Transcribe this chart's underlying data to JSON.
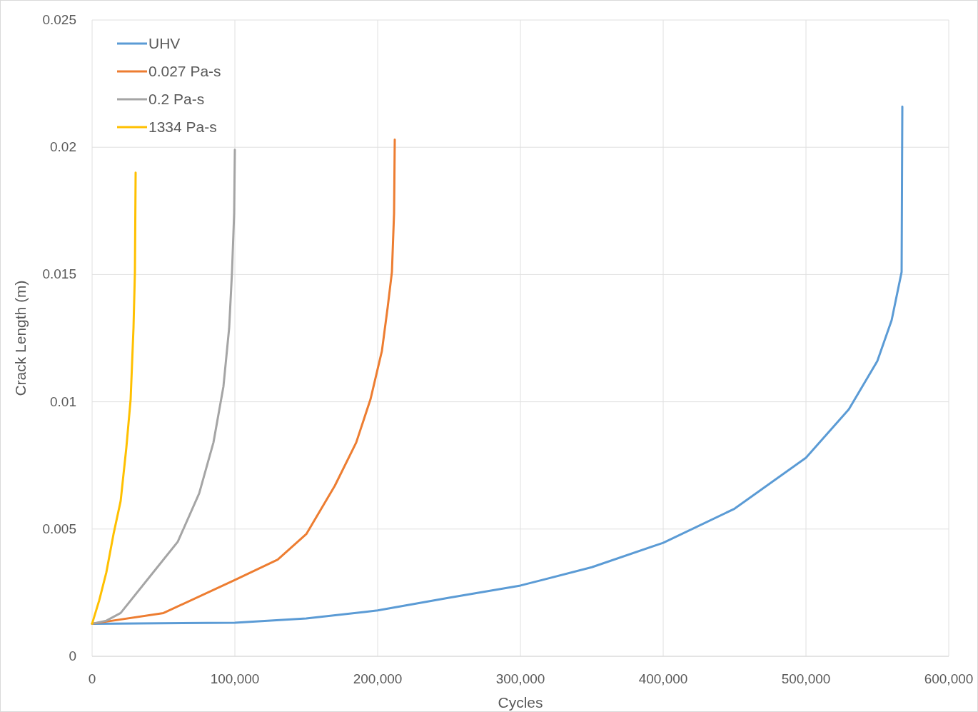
{
  "chart_data": {
    "type": "line",
    "xlabel": "Cycles",
    "ylabel": "Crack Length (m)",
    "xlim": [
      0,
      600000
    ],
    "ylim": [
      0,
      0.025
    ],
    "xticks": [
      0,
      {
        "value": 100000,
        "label": "100,000"
      },
      {
        "value": 200000,
        "label": "200,000"
      },
      {
        "value": 300000,
        "label": "300,000"
      },
      {
        "value": 400000,
        "label": "400,000"
      },
      {
        "value": 500000,
        "label": "500,000"
      },
      {
        "value": 600000,
        "label": "600,000"
      }
    ],
    "yticks": [
      0,
      0.005,
      0.01,
      0.015,
      0.02,
      0.025
    ],
    "grid": true,
    "legend": "top left",
    "marker": "none",
    "line_style": "solid",
    "series": [
      {
        "name": "UHV",
        "color": "#5b9bd5",
        "x": [
          0,
          100000,
          150000,
          200000,
          250000,
          300000,
          350000,
          400000,
          450000,
          500000,
          530000,
          550000,
          560000,
          567000,
          567500
        ],
        "values": [
          0.00128,
          0.00132,
          0.00149,
          0.0018,
          0.0023,
          0.00278,
          0.0035,
          0.00446,
          0.0058,
          0.0078,
          0.0097,
          0.0116,
          0.0132,
          0.0151,
          0.0216
        ]
      },
      {
        "name": "0.027 Pa-s",
        "color": "#ed7d31",
        "x": [
          0,
          50000,
          100000,
          130000,
          150000,
          170000,
          185000,
          195000,
          203000,
          207000,
          210000,
          211500,
          212000
        ],
        "values": [
          0.00128,
          0.0017,
          0.003,
          0.0038,
          0.0048,
          0.0067,
          0.0084,
          0.0101,
          0.012,
          0.0137,
          0.0151,
          0.0174,
          0.0203
        ]
      },
      {
        "name": "0.2 Pa-s",
        "color": "#a5a5a5",
        "x": [
          0,
          10000,
          20000,
          40000,
          60000,
          75000,
          85000,
          92000,
          96000,
          98000,
          99500,
          100000
        ],
        "values": [
          0.00128,
          0.0014,
          0.0017,
          0.0031,
          0.0045,
          0.0064,
          0.0084,
          0.0106,
          0.0129,
          0.0151,
          0.0174,
          0.0199
        ]
      },
      {
        "name": "1334 Pa-s",
        "color": "#ffc000",
        "x": [
          0,
          5000,
          10000,
          15000,
          20000,
          24000,
          27000,
          29000,
          30000,
          30500
        ],
        "values": [
          0.00128,
          0.0022,
          0.0033,
          0.0048,
          0.0061,
          0.0082,
          0.0101,
          0.0129,
          0.0151,
          0.019
        ]
      }
    ]
  }
}
